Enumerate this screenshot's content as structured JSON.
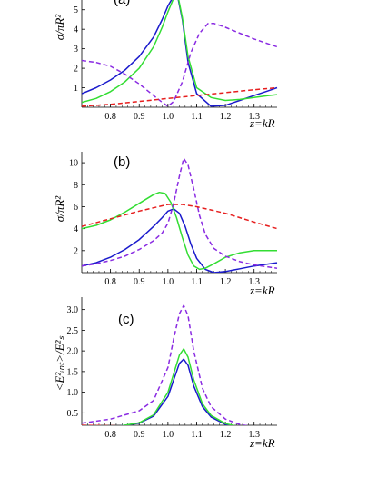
{
  "chart_data": [
    {
      "type": "line",
      "panel_label": "(a)",
      "ylabel": "σ/πR²",
      "xlabel": "z=kR",
      "xlim": [
        0.7,
        1.38
      ],
      "ylim": [
        0,
        5.5
      ],
      "xticks": [
        "0.8",
        "0.9",
        "1.0",
        "1.1",
        "1.2",
        "1.3"
      ],
      "yticks": [
        "1",
        "2",
        "3",
        "4",
        "5"
      ],
      "series": [
        {
          "color": "#1a1acc",
          "dash": false,
          "x": [
            0.7,
            0.75,
            0.8,
            0.85,
            0.9,
            0.95,
            0.98,
            1.0,
            1.02,
            1.035,
            1.05,
            1.07,
            1.1,
            1.15,
            1.2,
            1.25,
            1.3,
            1.35,
            1.38
          ],
          "y": [
            0.7,
            1.0,
            1.4,
            1.9,
            2.6,
            3.6,
            4.5,
            5.2,
            5.7,
            5.6,
            4.5,
            2.3,
            0.7,
            0.05,
            0.1,
            0.35,
            0.6,
            0.85,
            1.0
          ]
        },
        {
          "color": "#33dd33",
          "dash": false,
          "x": [
            0.7,
            0.75,
            0.8,
            0.85,
            0.9,
            0.95,
            0.98,
            1.0,
            1.02,
            1.035,
            1.05,
            1.07,
            1.1,
            1.15,
            1.2,
            1.25,
            1.3,
            1.35,
            1.38
          ],
          "y": [
            0.25,
            0.45,
            0.8,
            1.3,
            2.0,
            3.1,
            4.1,
            4.9,
            5.6,
            5.7,
            4.6,
            2.6,
            1.0,
            0.5,
            0.35,
            0.4,
            0.5,
            0.6,
            0.65
          ]
        },
        {
          "color": "#8a2be2",
          "dash": true,
          "x": [
            0.7,
            0.75,
            0.8,
            0.85,
            0.9,
            0.95,
            0.98,
            1.0,
            1.02,
            1.05,
            1.08,
            1.11,
            1.14,
            1.16,
            1.2,
            1.25,
            1.3,
            1.35,
            1.38
          ],
          "y": [
            2.4,
            2.3,
            2.1,
            1.7,
            1.2,
            0.6,
            0.25,
            0.05,
            0.3,
            1.3,
            2.8,
            3.8,
            4.3,
            4.3,
            4.1,
            3.8,
            3.5,
            3.25,
            3.1
          ]
        },
        {
          "color": "#e61e1e",
          "dash": true,
          "x": [
            0.7,
            0.8,
            0.9,
            1.0,
            1.1,
            1.2,
            1.3,
            1.38
          ],
          "y": [
            0.05,
            0.15,
            0.3,
            0.45,
            0.6,
            0.75,
            0.9,
            1.0
          ]
        }
      ]
    },
    {
      "type": "line",
      "panel_label": "(b)",
      "ylabel": "σ/πR²",
      "xlabel": "z=kR",
      "xlim": [
        0.7,
        1.38
      ],
      "ylim": [
        0,
        11
      ],
      "xticks": [
        "0.8",
        "0.9",
        "1.0",
        "1.1",
        "1.2",
        "1.3"
      ],
      "yticks": [
        "2",
        "4",
        "6",
        "8",
        "10"
      ],
      "series": [
        {
          "color": "#1a1acc",
          "dash": false,
          "x": [
            0.7,
            0.75,
            0.8,
            0.85,
            0.9,
            0.95,
            0.98,
            1.0,
            1.02,
            1.04,
            1.06,
            1.08,
            1.1,
            1.13,
            1.16,
            1.2,
            1.25,
            1.3,
            1.38
          ],
          "y": [
            0.6,
            0.9,
            1.4,
            2.1,
            3.0,
            4.2,
            5.0,
            5.6,
            5.8,
            5.4,
            4.2,
            2.6,
            1.3,
            0.3,
            0.0,
            0.1,
            0.35,
            0.6,
            0.9
          ]
        },
        {
          "color": "#33dd33",
          "dash": false,
          "x": [
            0.7,
            0.75,
            0.8,
            0.85,
            0.9,
            0.95,
            0.97,
            0.99,
            1.01,
            1.03,
            1.05,
            1.07,
            1.09,
            1.11,
            1.13,
            1.16,
            1.2,
            1.25,
            1.3,
            1.38
          ],
          "y": [
            4.0,
            4.3,
            4.8,
            5.5,
            6.3,
            7.1,
            7.3,
            7.2,
            6.4,
            5.0,
            3.2,
            1.6,
            0.6,
            0.3,
            0.4,
            0.8,
            1.4,
            1.8,
            2.0,
            2.0
          ]
        },
        {
          "color": "#8a2be2",
          "dash": true,
          "x": [
            0.7,
            0.75,
            0.8,
            0.85,
            0.9,
            0.95,
            0.98,
            1.0,
            1.02,
            1.04,
            1.055,
            1.07,
            1.09,
            1.11,
            1.13,
            1.16,
            1.2,
            1.25,
            1.3,
            1.38
          ],
          "y": [
            0.6,
            0.8,
            1.1,
            1.5,
            2.1,
            2.9,
            3.6,
            4.5,
            6.3,
            8.8,
            10.4,
            9.8,
            7.6,
            5.2,
            3.5,
            2.2,
            1.5,
            1.0,
            0.7,
            0.4
          ]
        },
        {
          "color": "#e61e1e",
          "dash": true,
          "x": [
            0.7,
            0.8,
            0.9,
            0.95,
            1.0,
            1.05,
            1.1,
            1.2,
            1.3,
            1.38
          ],
          "y": [
            4.2,
            4.9,
            5.6,
            5.9,
            6.2,
            6.2,
            6.0,
            5.4,
            4.6,
            4.0
          ]
        }
      ]
    },
    {
      "type": "line",
      "panel_label": "(c)",
      "ylabel": "<E²ᵢₙₜ>/E²ₛ",
      "xlabel": "z=kR",
      "xlim": [
        0.7,
        1.38
      ],
      "ylim": [
        0.2,
        3.3
      ],
      "xticks": [
        "0.8",
        "0.9",
        "1.0",
        "1.1",
        "1.2",
        "1.3"
      ],
      "yticks": [
        "0.5",
        "1.0",
        "1.5",
        "2.0",
        "2.5",
        "3.0"
      ],
      "series": [
        {
          "color": "#1a1acc",
          "dash": false,
          "x": [
            0.7,
            0.8,
            0.9,
            0.95,
            1.0,
            1.02,
            1.04,
            1.055,
            1.07,
            1.09,
            1.12,
            1.15,
            1.2,
            1.25,
            1.3,
            1.38
          ],
          "y": [
            0.1,
            0.15,
            0.25,
            0.42,
            0.9,
            1.3,
            1.7,
            1.8,
            1.65,
            1.15,
            0.65,
            0.4,
            0.22,
            0.16,
            0.13,
            0.1
          ]
        },
        {
          "color": "#33dd33",
          "dash": false,
          "x": [
            0.7,
            0.8,
            0.9,
            0.95,
            1.0,
            1.02,
            1.04,
            1.055,
            1.07,
            1.09,
            1.12,
            1.15,
            1.2,
            1.25,
            1.3,
            1.38
          ],
          "y": [
            0.07,
            0.14,
            0.26,
            0.45,
            1.0,
            1.45,
            1.9,
            2.05,
            1.85,
            1.3,
            0.72,
            0.44,
            0.24,
            0.16,
            0.12,
            0.09
          ]
        },
        {
          "color": "#8a2be2",
          "dash": true,
          "x": [
            0.7,
            0.8,
            0.9,
            0.95,
            1.0,
            1.02,
            1.04,
            1.055,
            1.07,
            1.09,
            1.12,
            1.15,
            1.2,
            1.25,
            1.3,
            1.38
          ],
          "y": [
            0.25,
            0.35,
            0.55,
            0.8,
            1.6,
            2.3,
            2.9,
            3.1,
            2.85,
            2.0,
            1.1,
            0.65,
            0.35,
            0.22,
            0.16,
            0.12
          ]
        },
        {
          "color": "#e61e1e",
          "dash": true,
          "x": [
            0.7,
            0.8,
            0.9,
            1.0,
            1.1,
            1.2,
            1.3,
            1.38
          ],
          "y": [
            0.2,
            0.19,
            0.17,
            0.15,
            0.13,
            0.12,
            0.11,
            0.1
          ]
        }
      ]
    }
  ]
}
